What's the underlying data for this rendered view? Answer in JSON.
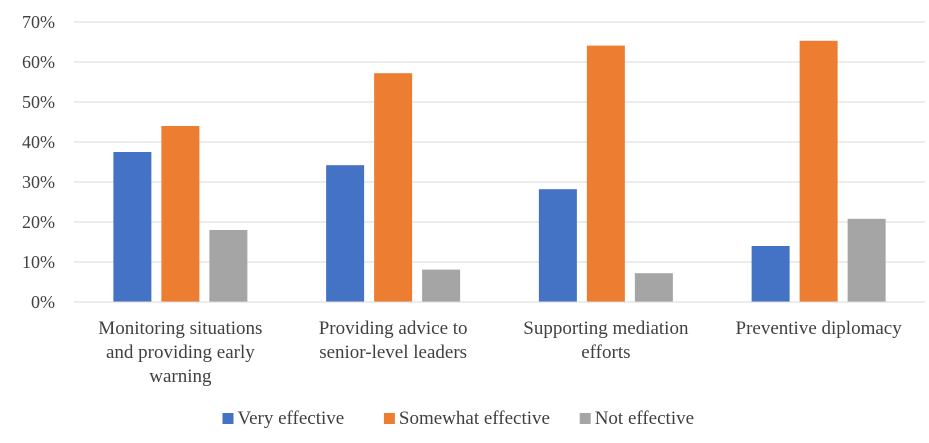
{
  "chart_data": {
    "type": "bar",
    "title": "",
    "xlabel": "",
    "ylabel": "",
    "ylim": [
      0,
      70
    ],
    "y_ticks": [
      0,
      10,
      20,
      30,
      40,
      50,
      60,
      70
    ],
    "y_tick_format": "%",
    "grid": "horizontal",
    "legend_position": "bottom",
    "categories": [
      "Monitoring situations and providing early warning",
      "Providing advice to senior-level leaders",
      "Supporting mediation efforts",
      "Preventive diplomacy"
    ],
    "category_label_lines": [
      [
        "Monitoring situations",
        "and providing early",
        "warning"
      ],
      [
        "Providing advice to",
        "senior-level leaders"
      ],
      [
        "Supporting mediation",
        "efforts"
      ],
      [
        "Preventive diplomacy"
      ]
    ],
    "series": [
      {
        "name": "Very effective",
        "color": "#4472C4",
        "values": [
          37.5,
          34.2,
          28.2,
          14.0
        ]
      },
      {
        "name": "Somewhat effective",
        "color": "#ED7D31",
        "values": [
          44.0,
          57.2,
          64.1,
          65.3
        ]
      },
      {
        "name": "Not effective",
        "color": "#A5A5A5",
        "values": [
          18.0,
          8.1,
          7.2,
          20.8
        ]
      }
    ]
  }
}
